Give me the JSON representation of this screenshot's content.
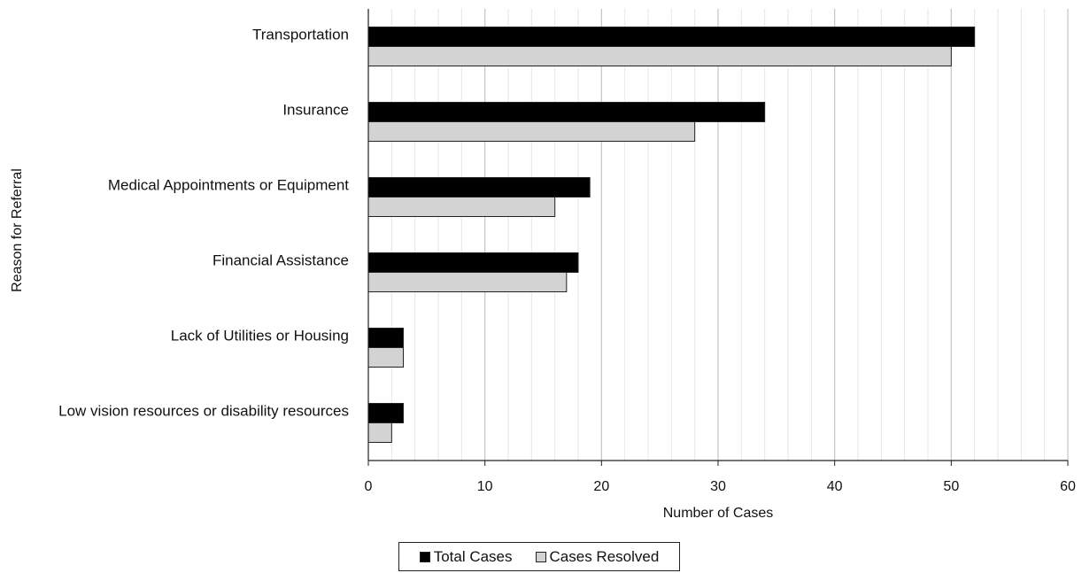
{
  "chart_data": {
    "type": "bar",
    "orientation": "horizontal",
    "categories": [
      "Transportation",
      "Insurance",
      "Medical Appointments or Equipment",
      "Financial Assistance",
      "Lack of Utilities or Housing",
      "Low vision resources or disability resources"
    ],
    "series": [
      {
        "name": "Total Cases",
        "values": [
          52,
          34,
          19,
          18,
          3,
          3
        ],
        "color": "#000000"
      },
      {
        "name": "Cases Resolved",
        "values": [
          50,
          28,
          16,
          17,
          3,
          2
        ],
        "color": "#d3d3d3"
      }
    ],
    "xlabel": "Number of Cases",
    "ylabel": "Reason for Referral",
    "xlim": [
      0,
      60
    ],
    "xticks": [
      0,
      10,
      20,
      30,
      40,
      50,
      60
    ],
    "grid": "vertical, major and minor",
    "legend_position": "bottom-center"
  }
}
